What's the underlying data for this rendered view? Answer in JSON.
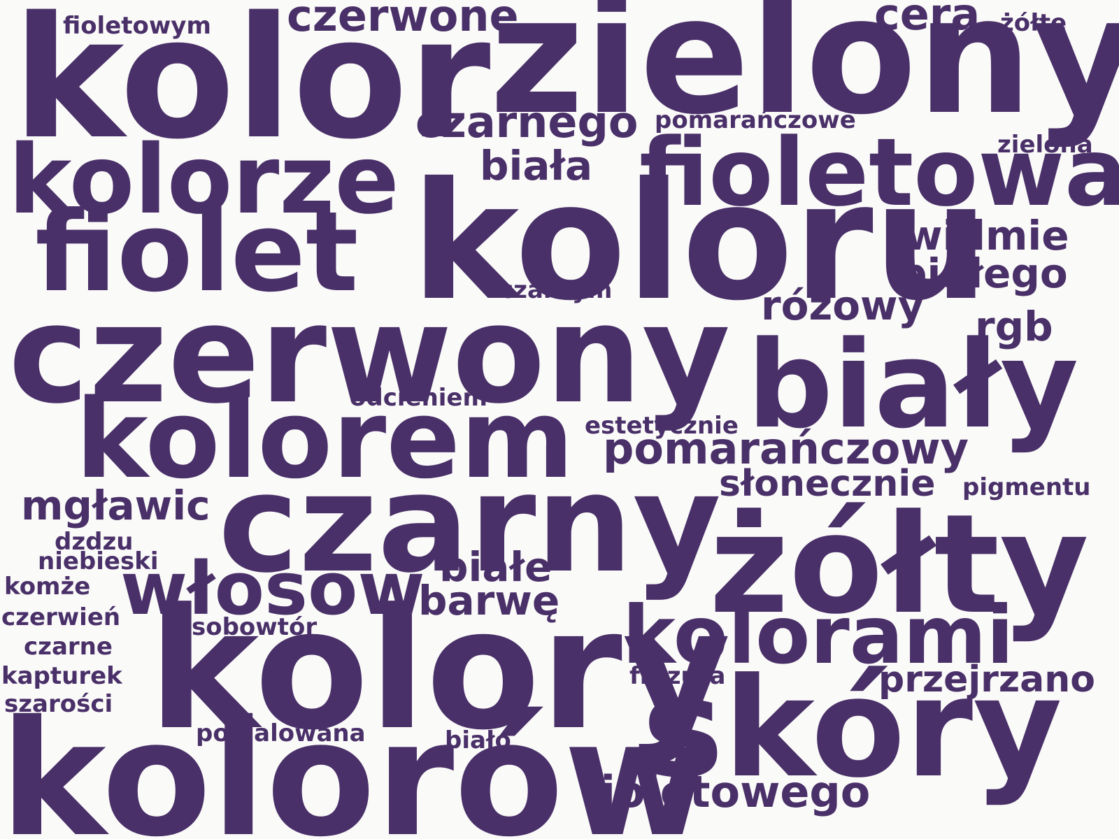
{
  "colors": {
    "background": "#fafaf8",
    "text": "#4a3069"
  },
  "words": [
    "kolor",
    "zielony",
    "koloru",
    "czerwony",
    "czarny",
    "kolory",
    "kolorów",
    "kolorze",
    "fiolet",
    "kolorem",
    "fioletowa",
    "biały",
    "żółty",
    "skóry",
    "kolorami",
    "włosów",
    "czarnego",
    "pomarańczowy",
    "czerwone",
    "cera",
    "fioletowego",
    "widmie",
    "białego",
    "różowy",
    "rgb",
    "biała",
    "barwę",
    "białe",
    "mgławic",
    "przejrzano",
    "słonecznie",
    "fioletowym",
    "żółte",
    "pomarańczowe",
    "zielona",
    "czarnym",
    "odcieniem",
    "estetycznie",
    "pigmentu",
    "dzdzu",
    "niebieski",
    "komże",
    "czerwień",
    "sobowtór",
    "czarne",
    "kapturek",
    "fryzura",
    "szarości",
    "pomalowana",
    "biało"
  ]
}
